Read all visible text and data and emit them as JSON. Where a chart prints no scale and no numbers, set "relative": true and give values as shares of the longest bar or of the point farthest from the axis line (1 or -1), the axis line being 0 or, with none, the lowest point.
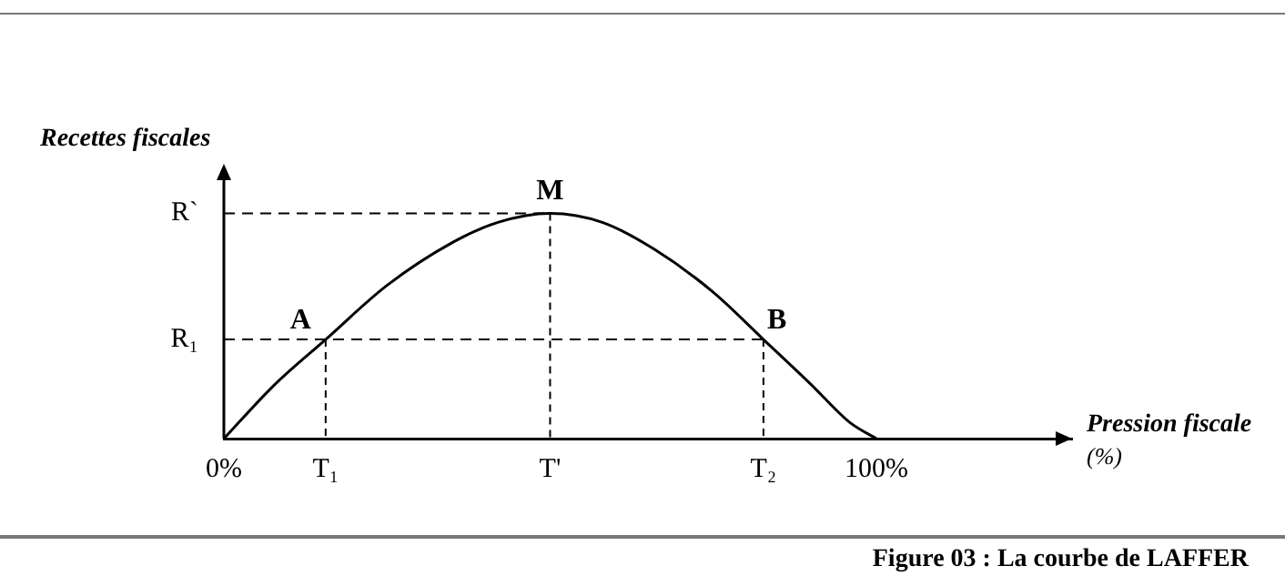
{
  "chart_data": {
    "type": "line",
    "xlabel": "Pression fiscale (%)",
    "ylabel": "Recettes fiscales",
    "x": [
      0,
      7.8,
      15.6,
      25,
      35,
      42,
      50,
      58,
      66,
      75,
      82.7,
      90,
      96,
      100
    ],
    "series": [
      {
        "color": "#000000",
        "values": [
          0,
          0.24,
          0.44,
          0.68,
          0.87,
          0.96,
          1,
          0.96,
          0.84,
          0.65,
          0.44,
          0.24,
          0.07,
          0
        ]
      }
    ],
    "xlim": [
      0,
      130
    ],
    "xticks": [
      {
        "value": 0,
        "label": "0%"
      },
      {
        "value": 15.6,
        "label": "T₁"
      },
      {
        "value": 50,
        "label": "T'"
      },
      {
        "value": 82.7,
        "label": "T₂"
      },
      {
        "value": 100,
        "label": "100%"
      }
    ],
    "relative": true,
    "grid": "x",
    "ref_lines": [
      {
        "axis": "y",
        "value": 1,
        "label": "R`",
        "line_style": "dashed"
      },
      {
        "axis": "y",
        "value": 0.44,
        "label": "R₁",
        "line_style": "dashed"
      }
    ],
    "legend": false,
    "marker": "none",
    "line_style": "solid",
    "annotations": [
      {
        "text": "M",
        "x": 50,
        "y": 1
      },
      {
        "text": "A",
        "x": 15.6,
        "y": 0.44
      },
      {
        "text": "B",
        "x": 82.7,
        "y": 0.44
      },
      "Figure 03 : La courbe de LAFFER"
    ]
  }
}
